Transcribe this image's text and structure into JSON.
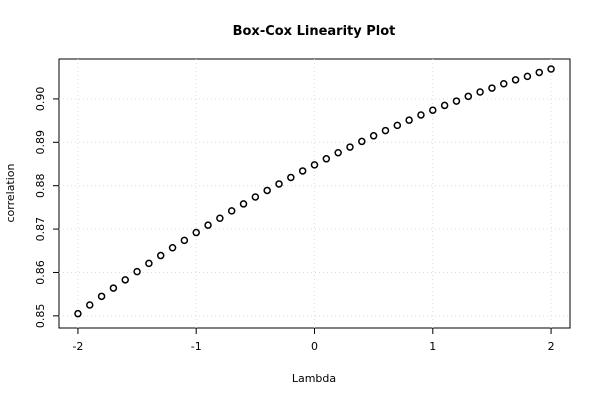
{
  "chart_data": {
    "type": "scatter",
    "title": "Box-Cox Linearity Plot",
    "x_label": "Lambda",
    "y_label": "correlation",
    "x": [
      -2,
      -1.9,
      -1.8,
      -1.7,
      -1.6,
      -1.5,
      -1.4,
      -1.3,
      -1.2,
      -1.1,
      -1,
      -0.9,
      -0.8,
      -0.7,
      -0.6,
      -0.5,
      -0.4,
      -0.3,
      -0.2,
      -0.1,
      0,
      0.1,
      0.2,
      0.3,
      0.4,
      0.5,
      0.6,
      0.7,
      0.8,
      0.9,
      1,
      1.1,
      1.2,
      1.3,
      1.4,
      1.5,
      1.6,
      1.7,
      1.8,
      1.9,
      2
    ],
    "values": [
      0.8505,
      0.8525,
      0.8545,
      0.8564,
      0.8583,
      0.8602,
      0.8621,
      0.8639,
      0.8657,
      0.8674,
      0.8692,
      0.8709,
      0.8725,
      0.8742,
      0.8758,
      0.8774,
      0.8789,
      0.8804,
      0.8819,
      0.8834,
      0.8848,
      0.8862,
      0.8876,
      0.8889,
      0.8902,
      0.8915,
      0.8927,
      0.8939,
      0.8951,
      0.8963,
      0.8974,
      0.8985,
      0.8995,
      0.9006,
      0.9016,
      0.9025,
      0.9035,
      0.9044,
      0.9052,
      0.9061,
      0.9069
    ],
    "color": "#000000",
    "xlim": [
      -2.16,
      2.16
    ],
    "xticks": [
      -2,
      -1,
      0,
      1,
      2
    ],
    "ylim": [
      0.8472,
      0.9092
    ],
    "yticks": [
      0.85,
      0.86,
      0.87,
      0.88,
      0.89,
      {
        "value": 0.9,
        "label": "0.90"
      }
    ],
    "grid": true
  }
}
